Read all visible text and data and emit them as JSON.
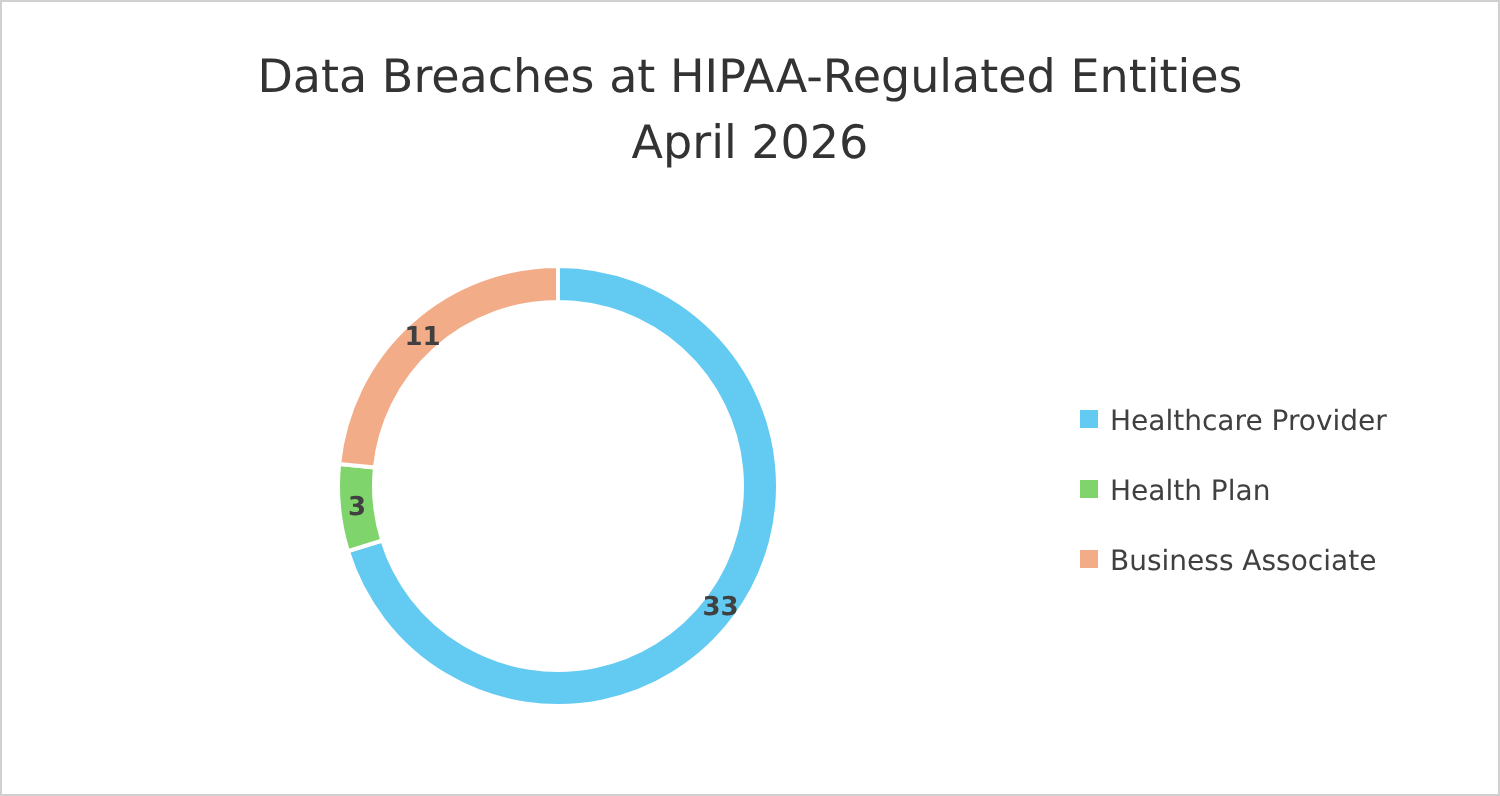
{
  "chart_data": {
    "type": "donut",
    "title": "Data Breaches at HIPAA-Regulated Entities\nApril 2026",
    "categories": [
      "Healthcare Provider",
      "Health Plan",
      "Business Associate"
    ],
    "values": [
      33,
      3,
      11
    ],
    "colors": [
      "#63caf2",
      "#7fd46c",
      "#f2ac87"
    ],
    "data_labels": true,
    "legend": "right"
  }
}
